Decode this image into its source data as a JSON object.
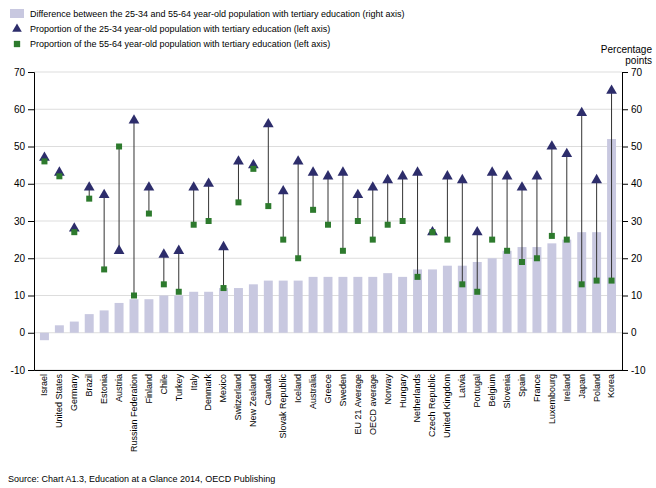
{
  "chart_data": {
    "type": "bar",
    "categories": [
      "Israel",
      "United States",
      "Germany",
      "Brazil",
      "Estonia",
      "Austria",
      "Russian Federation",
      "Finland",
      "Chile",
      "Turkey",
      "Italy",
      "Denmark",
      "Mexico",
      "Switzerland",
      "New Zealand",
      "Canada",
      "Slovak Republic",
      "Iceland",
      "Australia",
      "Greece",
      "Sweden",
      "EU 21 Average",
      "OECD average",
      "Norway",
      "Hungary",
      "Netherlands",
      "Czech Republic",
      "United Kingdom",
      "Latvia",
      "Portugal",
      "Belgium",
      "Slovenia",
      "Spain",
      "France",
      "Luxembourg",
      "Ireland",
      "Japan",
      "Poland",
      "Korea"
    ],
    "series": [
      {
        "name": "Difference between the 25-34 and 55-64 year-old population with tertiary education (right axis)",
        "type": "bar",
        "axis": "y2",
        "color": "#c8c8e0",
        "values": [
          -2,
          2,
          3,
          5,
          6,
          8,
          9,
          9,
          10,
          10,
          11,
          11,
          12,
          12,
          13,
          14,
          14,
          14,
          15,
          15,
          15,
          15,
          15,
          16,
          15,
          17,
          17,
          18,
          18,
          19,
          20,
          22,
          23,
          23,
          24,
          25,
          27,
          27,
          52
        ]
      },
      {
        "name": "Proportion of the 25-34 year-old population with tertiary education (left axis)",
        "type": "scatter",
        "marker": "triangle",
        "color": "#2d2d6b",
        "values": [
          47,
          43,
          28,
          39,
          37,
          22,
          57,
          39,
          21,
          22,
          39,
          40,
          23,
          46,
          45,
          56,
          38,
          46,
          43,
          42,
          43,
          37,
          39,
          41,
          42,
          43,
          27,
          42,
          41,
          27,
          43,
          42,
          39,
          42,
          50,
          48,
          59,
          41,
          65
        ]
      },
      {
        "name": "Proportion of the 55-64 year-old population with tertiary education (left axis)",
        "type": "scatter",
        "marker": "square",
        "color": "#2d7a2d",
        "values": [
          46,
          42,
          27,
          36,
          17,
          50,
          10,
          32,
          13,
          11,
          29,
          30,
          12,
          35,
          44,
          34,
          25,
          20,
          33,
          29,
          22,
          30,
          25,
          29,
          30,
          15,
          27,
          25,
          13,
          11,
          25,
          22,
          19,
          20,
          26,
          25,
          13,
          14,
          14
        ]
      }
    ],
    "ylim": [
      -10,
      70
    ],
    "yticks": [
      -10,
      0,
      10,
      20,
      30,
      40,
      50,
      60,
      70
    ],
    "y2lim": [
      -10,
      70
    ],
    "y2ticks": [
      -10,
      0,
      10,
      20,
      30,
      40,
      50,
      60,
      70
    ],
    "y2label": "Percentage\npoints",
    "grid": true,
    "legend": "upper left",
    "annotations": [
      "Source: Chart A1.3, Education at a Glance 2014, OECD Publishing"
    ]
  }
}
